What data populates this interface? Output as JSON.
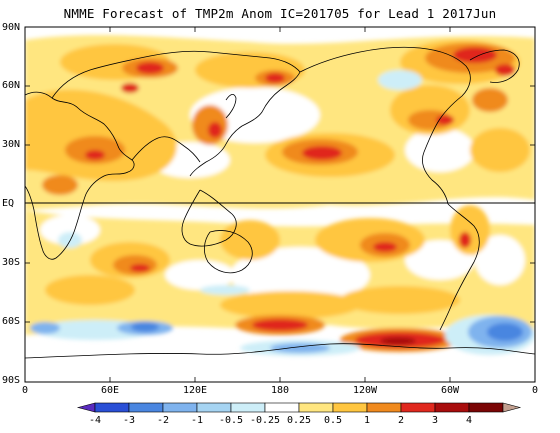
{
  "title": "NMME Forecast of TMP2m Anom IC=201705 for Lead 1 2017Jun",
  "y_axis_labels": [
    "90N",
    "60N",
    "30N",
    "EQ",
    "30S",
    "60S",
    "90S"
  ],
  "x_axis_labels": [
    "0",
    "60E",
    "120E",
    "180",
    "120W",
    "60W",
    "0"
  ],
  "colorbar_labels": [
    "-4",
    "-3",
    "-2",
    "-1",
    "-0.5",
    "-0.25",
    "0.25",
    "0.5",
    "1",
    "2",
    "3",
    "4"
  ],
  "colorbar_colors": [
    "#5a2bbf",
    "#2a4fd6",
    "#4a86e0",
    "#7fb3ee",
    "#a6d4f2",
    "#cdeef8",
    "#ffffff",
    "#ffe680",
    "#ffc640",
    "#f08a1e",
    "#e0281e",
    "#a80c0c",
    "#7a0505",
    "#c2a090"
  ],
  "colors": {
    "background": "#ffffff",
    "warm_light": "#ffe680",
    "warm_mid": "#ffc640",
    "warm_orange": "#f08a1e",
    "warm_red": "#e0281e",
    "warm_darkred": "#a80c0c",
    "cool_light": "#cdeef8",
    "cool_mid": "#7fb3ee",
    "cool_blue": "#4a86e0"
  }
}
